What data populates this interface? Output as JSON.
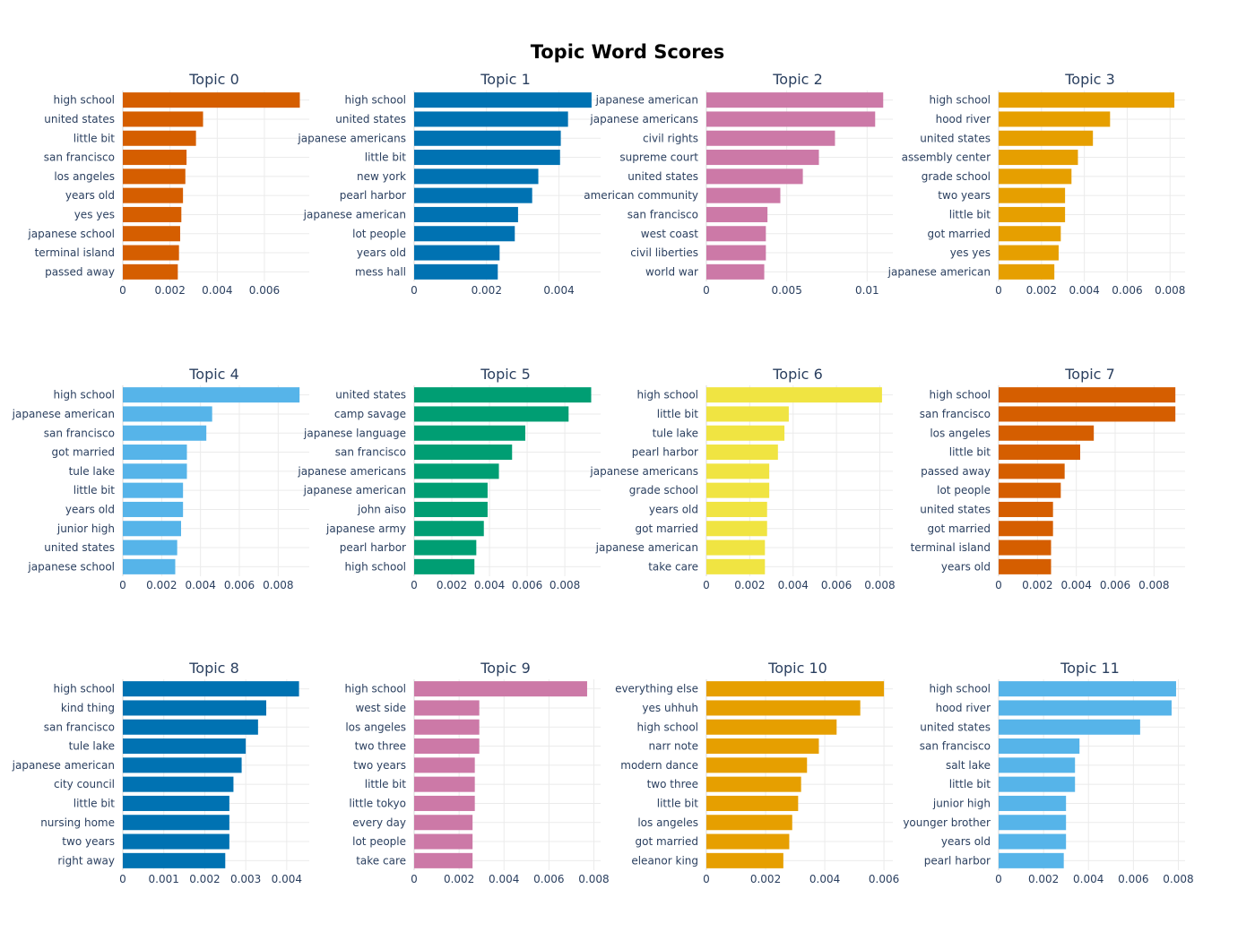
{
  "chart_data": {
    "type": "bar",
    "orientation": "horizontal",
    "title": "Topic Word Scores",
    "grid": true,
    "layout": "3 rows x 4 columns",
    "panels": [
      {
        "title": "Topic 0",
        "color": "#D55E00",
        "categories": [
          "high school",
          "united states",
          "little bit",
          "san francisco",
          "los angeles",
          "years old",
          "yes yes",
          "japanese school",
          "terminal island",
          "passed away"
        ],
        "values": [
          0.0075,
          0.0034,
          0.0031,
          0.0027,
          0.00265,
          0.00255,
          0.00248,
          0.00243,
          0.00238,
          0.00233
        ],
        "xlim": [
          0,
          0.0079
        ],
        "ticks": [
          0,
          0.002,
          0.004,
          0.006
        ],
        "tick_labels": [
          "0",
          "0.002",
          "0.004",
          "0.006"
        ]
      },
      {
        "title": "Topic 1",
        "color": "#0072B2",
        "categories": [
          "high school",
          "united states",
          "japanese americans",
          "little bit",
          "new york",
          "pearl harbor",
          "japanese american",
          "lot people",
          "years old",
          "mess hall"
        ],
        "values": [
          0.0049,
          0.00425,
          0.00405,
          0.00403,
          0.00343,
          0.00326,
          0.00287,
          0.00278,
          0.00236,
          0.00231
        ],
        "xlim": [
          0,
          0.00515
        ],
        "ticks": [
          0,
          0.002,
          0.004
        ],
        "tick_labels": [
          "0",
          "0.002",
          "0.004"
        ]
      },
      {
        "title": "Topic 2",
        "color": "#CC79A7",
        "categories": [
          "japanese american",
          "japanese americans",
          "civil rights",
          "supreme court",
          "united states",
          "american community",
          "san francisco",
          "west coast",
          "civil liberties",
          "world war"
        ],
        "values": [
          0.011,
          0.0105,
          0.008,
          0.007,
          0.006,
          0.0046,
          0.0038,
          0.0037,
          0.0037,
          0.0036
        ],
        "xlim": [
          0,
          0.0116
        ],
        "ticks": [
          0,
          0.005,
          0.01
        ],
        "tick_labels": [
          "0",
          "0.005",
          "0.01"
        ]
      },
      {
        "title": "Topic 3",
        "color": "#E69F00",
        "categories": [
          "high school",
          "hood river",
          "united states",
          "assembly center",
          "grade school",
          "two years",
          "little bit",
          "got married",
          "yes yes",
          "japanese american"
        ],
        "values": [
          0.0082,
          0.0052,
          0.0044,
          0.0037,
          0.0034,
          0.0031,
          0.0031,
          0.0029,
          0.0028,
          0.0026
        ],
        "xlim": [
          0,
          0.0087
        ],
        "ticks": [
          0,
          0.002,
          0.004,
          0.006,
          0.008
        ],
        "tick_labels": [
          "0",
          "0.002",
          "0.004",
          "0.006",
          "0.008"
        ]
      },
      {
        "title": "Topic 4",
        "color": "#56B4E9",
        "categories": [
          "high school",
          "japanese american",
          "san francisco",
          "got married",
          "tule lake",
          "little bit",
          "years old",
          "junior high",
          "united states",
          "japanese school"
        ],
        "values": [
          0.0091,
          0.0046,
          0.0043,
          0.0033,
          0.0033,
          0.0031,
          0.0031,
          0.003,
          0.0028,
          0.0027
        ],
        "xlim": [
          0,
          0.0096
        ],
        "ticks": [
          0,
          0.002,
          0.004,
          0.006,
          0.008
        ],
        "tick_labels": [
          "0",
          "0.002",
          "0.004",
          "0.006",
          "0.008"
        ]
      },
      {
        "title": "Topic 5",
        "color": "#009E73",
        "categories": [
          "united states",
          "camp savage",
          "japanese language",
          "san francisco",
          "japanese americans",
          "japanese american",
          "john aiso",
          "japanese army",
          "pearl harbor",
          "high school"
        ],
        "values": [
          0.0094,
          0.0082,
          0.0059,
          0.0052,
          0.0045,
          0.0039,
          0.0039,
          0.0037,
          0.0033,
          0.0032
        ],
        "xlim": [
          0,
          0.0099
        ],
        "ticks": [
          0,
          0.002,
          0.004,
          0.006,
          0.008
        ],
        "tick_labels": [
          "0",
          "0.002",
          "0.004",
          "0.006",
          "0.008"
        ]
      },
      {
        "title": "Topic 6",
        "color": "#F0E442",
        "categories": [
          "high school",
          "little bit",
          "tule lake",
          "pearl harbor",
          "japanese americans",
          "grade school",
          "years old",
          "got married",
          "japanese american",
          "take care"
        ],
        "values": [
          0.0081,
          0.0038,
          0.0036,
          0.0033,
          0.0029,
          0.0029,
          0.0028,
          0.0028,
          0.0027,
          0.0027
        ],
        "xlim": [
          0,
          0.0086
        ],
        "ticks": [
          0,
          0.002,
          0.004,
          0.006,
          0.008
        ],
        "tick_labels": [
          "0",
          "0.002",
          "0.004",
          "0.006",
          "0.008"
        ]
      },
      {
        "title": "Topic 7",
        "color": "#D55E00",
        "categories": [
          "high school",
          "san francisco",
          "los angeles",
          "little bit",
          "passed away",
          "lot people",
          "united states",
          "got married",
          "terminal island",
          "years old"
        ],
        "values": [
          0.0091,
          0.0091,
          0.0049,
          0.0042,
          0.0034,
          0.0032,
          0.0028,
          0.0028,
          0.0027,
          0.0027
        ],
        "xlim": [
          0,
          0.0096
        ],
        "ticks": [
          0,
          0.002,
          0.004,
          0.006,
          0.008
        ],
        "tick_labels": [
          "0",
          "0.002",
          "0.004",
          "0.006",
          "0.008"
        ]
      },
      {
        "title": "Topic 8",
        "color": "#0072B2",
        "categories": [
          "high school",
          "kind thing",
          "san francisco",
          "tule lake",
          "japanese american",
          "city council",
          "little bit",
          "nursing home",
          "two years",
          "right away"
        ],
        "values": [
          0.0043,
          0.0035,
          0.0033,
          0.003,
          0.0029,
          0.0027,
          0.0026,
          0.0026,
          0.0026,
          0.0025
        ],
        "xlim": [
          0,
          0.00455
        ],
        "ticks": [
          0,
          0.001,
          0.002,
          0.003,
          0.004
        ],
        "tick_labels": [
          "0",
          "0.001",
          "0.002",
          "0.003",
          "0.004"
        ]
      },
      {
        "title": "Topic 9",
        "color": "#CC79A7",
        "categories": [
          "high school",
          "west side",
          "los angeles",
          "two three",
          "two years",
          "little bit",
          "little tokyo",
          "every day",
          "lot people",
          "take care"
        ],
        "values": [
          0.0077,
          0.0029,
          0.0029,
          0.0029,
          0.0027,
          0.0027,
          0.0027,
          0.0026,
          0.0026,
          0.0026
        ],
        "xlim": [
          0,
          0.0083
        ],
        "ticks": [
          0,
          0.002,
          0.004,
          0.006,
          0.008
        ],
        "tick_labels": [
          "0",
          "0.002",
          "0.004",
          "0.006",
          "0.008"
        ]
      },
      {
        "title": "Topic 10",
        "color": "#E69F00",
        "categories": [
          "everything else",
          "yes uhhuh",
          "high school",
          "narr note",
          "modern dance",
          "two three",
          "little bit",
          "los angeles",
          "got married",
          "eleanor king"
        ],
        "values": [
          0.006,
          0.0052,
          0.0044,
          0.0038,
          0.0034,
          0.0032,
          0.0031,
          0.0029,
          0.0028,
          0.0026
        ],
        "xlim": [
          0,
          0.0063
        ],
        "ticks": [
          0,
          0.002,
          0.004,
          0.006
        ],
        "tick_labels": [
          "0",
          "0.002",
          "0.004",
          "0.006"
        ]
      },
      {
        "title": "Topic 11",
        "color": "#56B4E9",
        "categories": [
          "high school",
          "hood river",
          "united states",
          "san francisco",
          "salt lake",
          "little bit",
          "junior high",
          "younger brother",
          "years old",
          "pearl harbor"
        ],
        "values": [
          0.0079,
          0.0077,
          0.0063,
          0.0036,
          0.0034,
          0.0034,
          0.003,
          0.003,
          0.003,
          0.0029
        ],
        "xlim": [
          0,
          0.0083
        ],
        "ticks": [
          0,
          0.002,
          0.004,
          0.006,
          0.008
        ],
        "tick_labels": [
          "0",
          "0.002",
          "0.004",
          "0.006",
          "0.008"
        ]
      }
    ]
  }
}
